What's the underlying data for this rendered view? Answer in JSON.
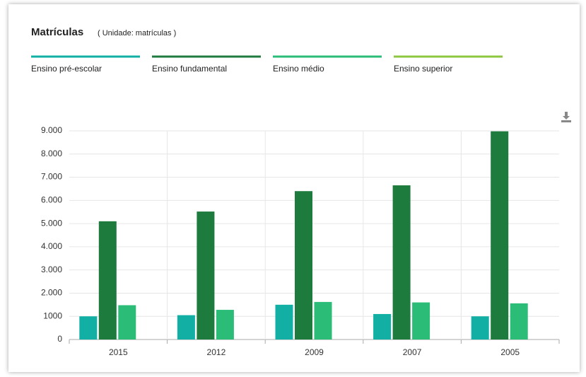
{
  "chart_data": {
    "type": "bar",
    "title": "Matrículas",
    "subtitle": "( Unidade: matrículas )",
    "categories": [
      "2015",
      "2012",
      "2009",
      "2007",
      "2005"
    ],
    "series": [
      {
        "name": "Ensino pré-escolar",
        "color": "#12b0a4",
        "values": [
          1000,
          1050,
          1500,
          1100,
          1000
        ]
      },
      {
        "name": "Ensino fundamental",
        "color": "#1e7b3e",
        "values": [
          5100,
          5520,
          6400,
          6650,
          8980
        ]
      },
      {
        "name": "Ensino médio",
        "color": "#2bbd78",
        "values": [
          1480,
          1280,
          1620,
          1600,
          1560
        ]
      },
      {
        "name": "Ensino superior",
        "color": "#8dc63f",
        "values": [
          null,
          null,
          null,
          null,
          null
        ]
      }
    ],
    "ylim": [
      0,
      9000
    ],
    "yticks": [
      0,
      1000,
      {
        "value": 2000,
        "label": "2.000"
      },
      {
        "value": 3000,
        "label": "3.000"
      },
      {
        "value": 4000,
        "label": "4.000"
      },
      {
        "value": 5000,
        "label": "5.000"
      },
      {
        "value": 6000,
        "label": "6.000"
      },
      {
        "value": 7000,
        "label": "7.000"
      },
      {
        "value": 8000,
        "label": "8.000"
      },
      {
        "value": 9000,
        "label": "9.000"
      }
    ],
    "grid": true,
    "legend": "top"
  }
}
